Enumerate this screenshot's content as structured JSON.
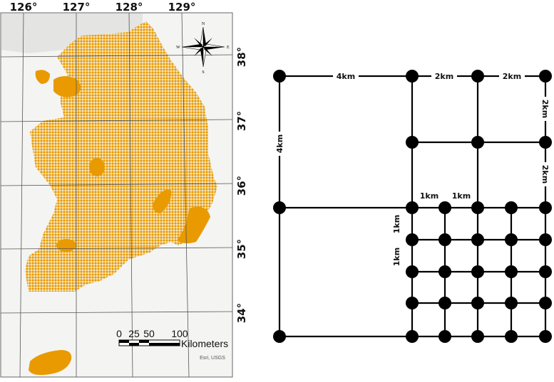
{
  "map": {
    "longitude_labels": [
      "126°",
      "127°",
      "128°",
      "129°"
    ],
    "latitude_labels": [
      "38°",
      "37°",
      "36°",
      "35°",
      "34°"
    ],
    "compass": {
      "n": "N",
      "s": "S",
      "e": "E",
      "w": "W"
    },
    "scale_bar": {
      "ticks": [
        "0",
        "25",
        "50",
        "100"
      ],
      "unit": "Kilometers"
    },
    "attribution": "Esri, USGS",
    "colors": {
      "grid_fill": "#E89A00",
      "background": "#F4F4F2",
      "graticule": "#555555"
    }
  },
  "diagram": {
    "labels": {
      "top_4km": "4km",
      "top_2km_a": "2km",
      "top_2km_b": "2km",
      "left_4km": "4km",
      "right_2km_a": "2km",
      "right_2km_b": "2km",
      "fine_1km_h_a": "1km",
      "fine_1km_h_b": "1km",
      "fine_1km_v_a": "1km",
      "fine_1km_v_b": "1km"
    },
    "node_color": "#000000"
  }
}
